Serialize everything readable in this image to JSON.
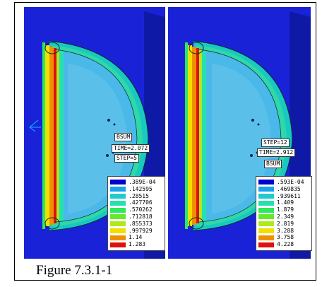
{
  "figure": {
    "caption": "Figure 7.3.1-1"
  },
  "panels": [
    {
      "labels": [
        "BSUM",
        "TIME=2.072",
        "STEP=5"
      ],
      "legend": [
        ".389E-04",
        ".142595",
        ".28515",
        ".427706",
        ".570262",
        ".712818",
        ".855373",
        ".997929",
        "1.14",
        "1.283"
      ]
    },
    {
      "labels": [
        "STEP=12",
        "TIME=2.912",
        "BSUM"
      ],
      "legend": [
        ".593E-04",
        ".469835",
        ".939611",
        "1.409",
        "1.879",
        "2.349",
        "2.819",
        "3.288",
        "3.758",
        "4.228"
      ]
    }
  ],
  "colors": {
    "background_blue": "#1a22d8",
    "plate_blue": "#0e1aa6",
    "contour": [
      "#0000d0",
      "#19a2e8",
      "#26c8d0",
      "#27e0b0",
      "#2ee860",
      "#66e830",
      "#b0e820",
      "#f0e000",
      "#f09000",
      "#e01010"
    ]
  }
}
